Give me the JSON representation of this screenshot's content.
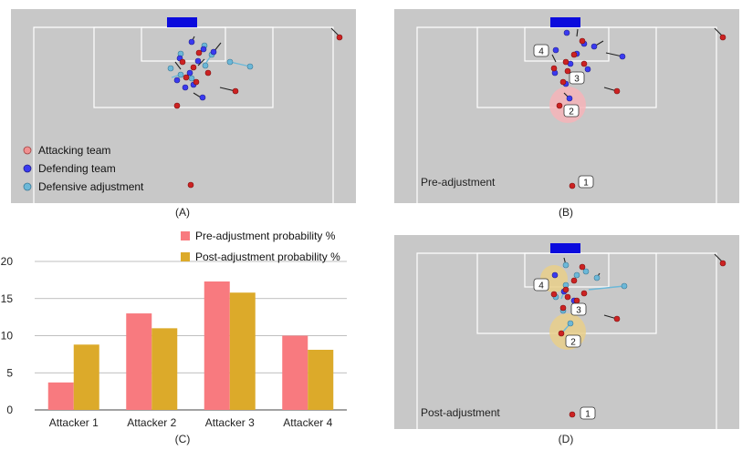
{
  "panels": {
    "a": {
      "caption": "(A)",
      "legend": [
        {
          "label": "Attacking team",
          "color": "#f09090"
        },
        {
          "label": "Defending team",
          "color": "#3a3af0"
        },
        {
          "label": "Defensive adjustment",
          "color": "#6cb8d8"
        }
      ]
    },
    "b": {
      "caption": "(B)",
      "label": "Pre-adjustment",
      "markers": [
        "1",
        "2",
        "3",
        "4"
      ]
    },
    "c": {
      "caption": "(C)"
    },
    "d": {
      "caption": "(D)",
      "label": "Post-adjustment",
      "markers": [
        "1",
        "2",
        "3",
        "4"
      ]
    }
  },
  "colors": {
    "pitch": "#c8c8c8",
    "goal": "#0b0bdd",
    "attacker": "#cc2222",
    "defender": "#3a3af0",
    "adjustment": "#6cb8d8",
    "pre_bar": "#f87a7f",
    "post_bar": "#dcaa2a",
    "highlight_pre": "#f6b4b8",
    "highlight_post": "#e9cf8a"
  },
  "chart_data": {
    "type": "bar",
    "categories": [
      "Attacker 1",
      "Attacker 2",
      "Attacker 3",
      "Attacker 4"
    ],
    "series": [
      {
        "name": "Pre-adjustment probability %",
        "values": [
          3.7,
          13.0,
          17.3,
          10.0
        ]
      },
      {
        "name": "Post-adjustment probability %",
        "values": [
          8.8,
          11.0,
          15.8,
          8.1
        ]
      }
    ],
    "yticks": [
      "0",
      "5",
      "10",
      "15",
      "20"
    ],
    "ylim": [
      0,
      20
    ],
    "grid": true,
    "legend_position": "top-right"
  }
}
